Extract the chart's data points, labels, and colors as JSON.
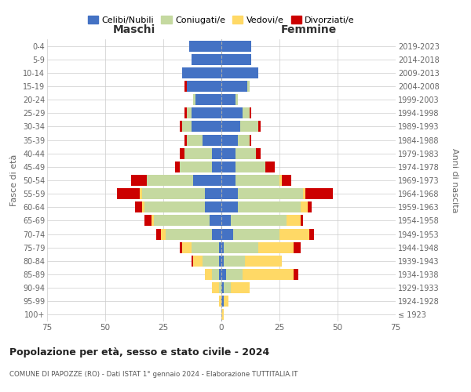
{
  "age_groups": [
    "100+",
    "95-99",
    "90-94",
    "85-89",
    "80-84",
    "75-79",
    "70-74",
    "65-69",
    "60-64",
    "55-59",
    "50-54",
    "45-49",
    "40-44",
    "35-39",
    "30-34",
    "25-29",
    "20-24",
    "15-19",
    "10-14",
    "5-9",
    "0-4"
  ],
  "birth_years": [
    "≤ 1923",
    "1924-1928",
    "1929-1933",
    "1934-1938",
    "1939-1943",
    "1944-1948",
    "1949-1953",
    "1954-1958",
    "1959-1963",
    "1964-1968",
    "1969-1973",
    "1974-1978",
    "1979-1983",
    "1984-1988",
    "1989-1993",
    "1994-1998",
    "1999-2003",
    "2004-2008",
    "2009-2013",
    "2014-2018",
    "2019-2023"
  ],
  "colors": {
    "celibi": "#4472C4",
    "coniugati": "#c5d9a0",
    "vedovi": "#FFD966",
    "divorziati": "#CC0000"
  },
  "maschi": {
    "celibi": [
      0,
      0,
      0,
      1,
      1,
      1,
      4,
      5,
      7,
      7,
      12,
      4,
      4,
      8,
      13,
      13,
      11,
      15,
      17,
      13,
      14
    ],
    "coniugati": [
      0,
      0,
      1,
      3,
      7,
      12,
      20,
      24,
      26,
      27,
      20,
      14,
      12,
      7,
      4,
      2,
      1,
      0,
      0,
      0,
      0
    ],
    "vedovi": [
      0,
      1,
      3,
      3,
      4,
      4,
      2,
      1,
      1,
      1,
      0,
      0,
      0,
      0,
      0,
      0,
      0,
      0,
      0,
      0,
      0
    ],
    "divorziati": [
      0,
      0,
      0,
      0,
      1,
      1,
      2,
      3,
      3,
      10,
      7,
      2,
      2,
      1,
      1,
      1,
      0,
      1,
      0,
      0,
      0
    ]
  },
  "femmine": {
    "celibi": [
      0,
      1,
      1,
      2,
      1,
      1,
      5,
      4,
      7,
      7,
      6,
      6,
      6,
      7,
      8,
      9,
      6,
      11,
      16,
      13,
      13
    ],
    "coniugati": [
      0,
      0,
      3,
      7,
      9,
      15,
      20,
      24,
      27,
      28,
      19,
      13,
      9,
      5,
      8,
      3,
      1,
      1,
      0,
      0,
      0
    ],
    "vedovi": [
      1,
      2,
      8,
      22,
      16,
      15,
      13,
      6,
      3,
      1,
      1,
      0,
      0,
      0,
      0,
      0,
      0,
      0,
      0,
      0,
      0
    ],
    "divorziati": [
      0,
      0,
      0,
      2,
      0,
      3,
      2,
      1,
      2,
      12,
      4,
      4,
      2,
      1,
      1,
      1,
      0,
      0,
      0,
      0,
      0
    ]
  },
  "xlim": 75,
  "title": "Popolazione per età, sesso e stato civile - 2024",
  "subtitle": "COMUNE DI PAPOZZE (RO) - Dati ISTAT 1° gennaio 2024 - Elaborazione TUTTITALIA.IT",
  "ylabel_left": "Fasce di età",
  "ylabel_right": "Anni di nascita",
  "xlabel_left": "Maschi",
  "xlabel_right": "Femmine",
  "background_color": "#ffffff",
  "grid_color": "#cccccc"
}
